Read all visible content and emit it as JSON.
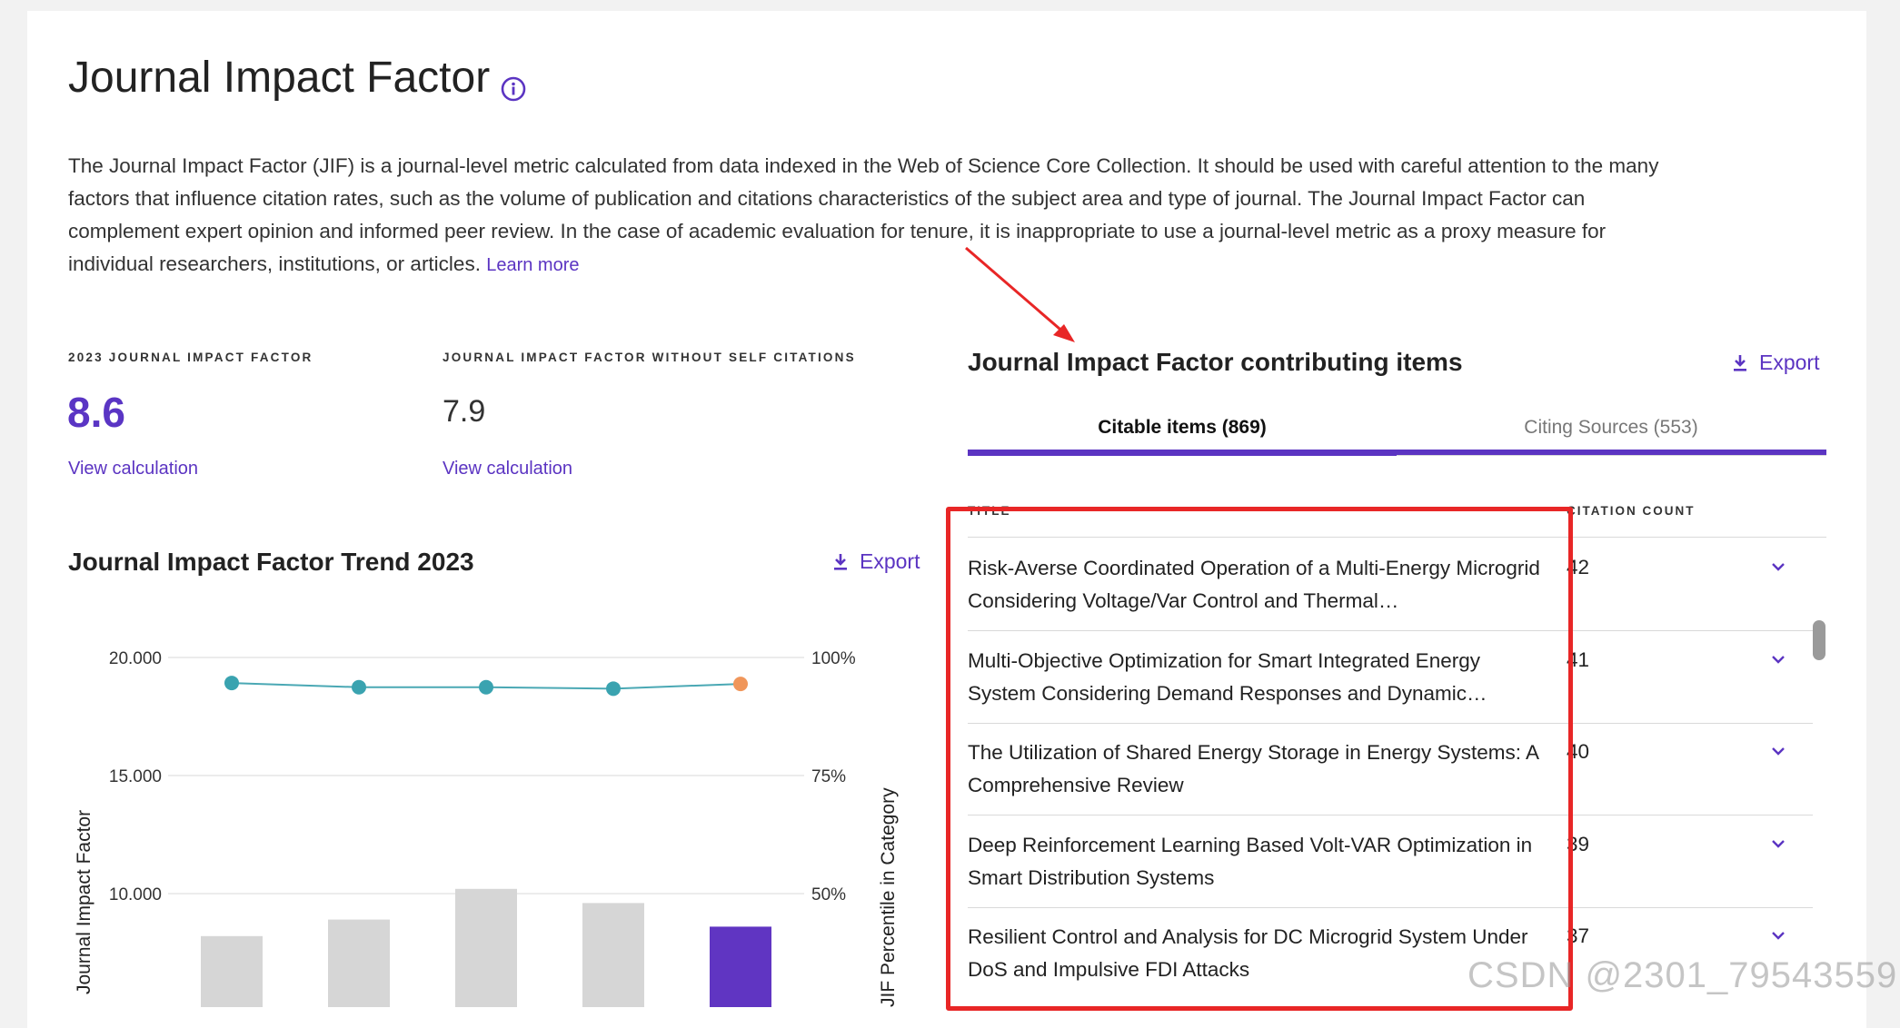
{
  "page": {
    "title": "Journal Impact Factor",
    "description": "The Journal Impact Factor (JIF) is a journal-level metric calculated from data indexed in the Web of Science Core Collection. It should be used with careful attention to the many factors that influence citation rates, such as the volume of publication and citations characteristics of the subject area and type of journal. The Journal Impact Factor can complement expert opinion and informed peer review. In the case of academic evaluation for tenure, it is inappropriate to use a journal-level metric as a proxy measure for individual researchers, institutions, or articles.",
    "learn_more": "Learn more"
  },
  "metrics": {
    "jif_label": "2023 JOURNAL IMPACT FACTOR",
    "jif_value": "8.6",
    "jif_link": "View calculation",
    "noself_label": "JOURNAL IMPACT FACTOR WITHOUT SELF CITATIONS",
    "noself_value": "7.9",
    "noself_link": "View calculation"
  },
  "trend": {
    "title": "Journal Impact Factor Trend 2023",
    "export": "Export"
  },
  "chart_data": {
    "type": "bar",
    "ylabel": "Journal Impact Factor",
    "y2label": "JIF Percentile in Category",
    "ylim": [
      0,
      20
    ],
    "y_ticks": [
      "20.000",
      "15.000",
      "10.000"
    ],
    "y2_ticks": [
      "100%",
      "75%",
      "50%"
    ],
    "bars": [
      {
        "value": 8.2,
        "color": "#d6d6d6"
      },
      {
        "value": 8.9,
        "color": "#d6d6d6"
      },
      {
        "value": 10.2,
        "color": "#d6d6d6"
      },
      {
        "value": 9.6,
        "color": "#d6d6d6"
      },
      {
        "value": 8.6,
        "color": "#6035c2"
      }
    ],
    "percentile": [
      {
        "value": 94.6,
        "color": "#3aa3b0"
      },
      {
        "value": 93.7,
        "color": "#3aa3b0"
      },
      {
        "value": 93.7,
        "color": "#3aa3b0"
      },
      {
        "value": 93.4,
        "color": "#3aa3b0"
      },
      {
        "value": 94.4,
        "color": "#f0965a"
      }
    ],
    "line_color": "#4aa8b4",
    "grid": true
  },
  "contributing": {
    "title": "Journal Impact Factor contributing items",
    "export": "Export",
    "tabs": [
      {
        "label": "Citable items (869)",
        "active": true
      },
      {
        "label": "Citing Sources (553)",
        "active": false
      }
    ],
    "col_title": "TITLE",
    "col_count": "CITATION COUNT",
    "rows": [
      {
        "title": "Risk-Averse Coordinated Operation of a Multi-Energy Microgrid Considering Voltage/Var Control and Thermal…",
        "count": "42"
      },
      {
        "title": "Multi-Objective Optimization for Smart Integrated Energy System Considering Demand Responses and Dynamic…",
        "count": "41"
      },
      {
        "title": "The Utilization of Shared Energy Storage in Energy Systems: A Comprehensive Review",
        "count": "40"
      },
      {
        "title": "Deep Reinforcement Learning Based Volt-VAR Optimization in Smart Distribution Systems",
        "count": "39"
      },
      {
        "title": "Resilient Control and Analysis for DC Microgrid System Under DoS and Impulsive FDI Attacks",
        "count": "37"
      }
    ]
  },
  "watermark": "CSDN @2301_79543559",
  "colors": {
    "accent": "#5b34c2",
    "highlight_box": "#e82626",
    "arrow": "#e82626"
  }
}
